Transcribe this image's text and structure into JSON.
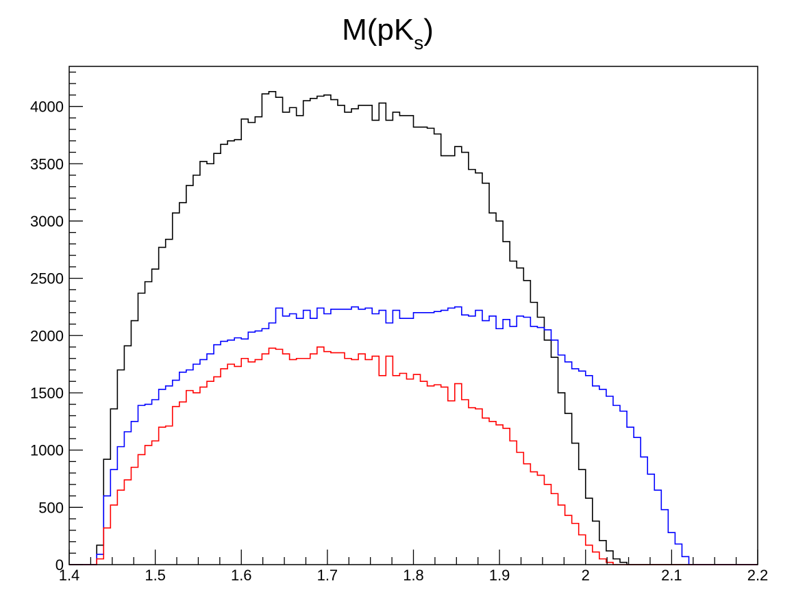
{
  "chart_data": {
    "type": "histogram",
    "title_main": "M(pK",
    "title_subscript": "s",
    "title_close": ")",
    "xlabel": "",
    "ylabel": "",
    "xlim": [
      1.4,
      2.2
    ],
    "ylim": [
      0,
      4350
    ],
    "x_ticks": [
      1.4,
      1.5,
      1.6,
      1.7,
      1.8,
      1.9,
      2.0,
      2.1,
      2.2
    ],
    "x_tick_labels": [
      "1.4",
      "1.5",
      "1.6",
      "1.7",
      "1.8",
      "1.9",
      "2",
      "2.1",
      "2.2"
    ],
    "y_ticks": [
      0,
      500,
      1000,
      1500,
      2000,
      2500,
      3000,
      3500,
      4000
    ],
    "y_tick_labels": [
      "0",
      "500",
      "1000",
      "1500",
      "2000",
      "2500",
      "3000",
      "3500",
      "4000"
    ],
    "grid": false,
    "legend": "none",
    "bins": {
      "start": 1.4,
      "end": 2.2,
      "count": 100
    },
    "series": [
      {
        "color": "#000000",
        "values": [
          0,
          0,
          0,
          0,
          170,
          920,
          1360,
          1700,
          1910,
          2130,
          2370,
          2470,
          2580,
          2770,
          2840,
          3070,
          3160,
          3310,
          3400,
          3520,
          3500,
          3590,
          3670,
          3700,
          3710,
          3890,
          3860,
          3910,
          4110,
          4130,
          4080,
          3950,
          3990,
          3920,
          4050,
          4070,
          4090,
          4100,
          4060,
          4010,
          3950,
          3980,
          4010,
          4010,
          3880,
          4030,
          3880,
          3950,
          3920,
          3920,
          3820,
          3820,
          3810,
          3760,
          3570,
          3570,
          3650,
          3600,
          3450,
          3420,
          3330,
          3070,
          3000,
          2820,
          2650,
          2590,
          2480,
          2290,
          2160,
          1960,
          1810,
          1500,
          1320,
          1060,
          830,
          580,
          380,
          210,
          120,
          50,
          20,
          0,
          0,
          0,
          0,
          0,
          0,
          0,
          0,
          0,
          0,
          0,
          0,
          0,
          0,
          0,
          0,
          0,
          0,
          0
        ]
      },
      {
        "color": "#0000ff",
        "values": [
          0,
          0,
          0,
          0,
          90,
          600,
          830,
          1030,
          1160,
          1250,
          1390,
          1400,
          1440,
          1530,
          1560,
          1610,
          1680,
          1700,
          1750,
          1790,
          1840,
          1920,
          1950,
          1960,
          1980,
          1970,
          2030,
          2040,
          2060,
          2110,
          2240,
          2170,
          2190,
          2150,
          2220,
          2150,
          2240,
          2190,
          2230,
          2230,
          2230,
          2250,
          2230,
          2240,
          2190,
          2220,
          2110,
          2220,
          2150,
          2150,
          2200,
          2200,
          2200,
          2210,
          2220,
          2240,
          2250,
          2180,
          2170,
          2220,
          2130,
          2170,
          2060,
          2140,
          2080,
          2170,
          2160,
          2080,
          2070,
          2050,
          1960,
          1830,
          1770,
          1710,
          1690,
          1650,
          1560,
          1530,
          1470,
          1390,
          1340,
          1200,
          1110,
          940,
          790,
          650,
          480,
          280,
          180,
          70,
          0,
          0,
          0,
          0,
          0,
          0,
          0,
          0,
          0,
          0
        ]
      },
      {
        "color": "#ff0000",
        "values": [
          0,
          0,
          0,
          0,
          50,
          320,
          520,
          650,
          740,
          850,
          960,
          1040,
          1080,
          1200,
          1210,
          1380,
          1420,
          1520,
          1500,
          1550,
          1600,
          1640,
          1710,
          1750,
          1730,
          1800,
          1770,
          1790,
          1840,
          1890,
          1880,
          1840,
          1790,
          1800,
          1800,
          1840,
          1900,
          1860,
          1850,
          1850,
          1800,
          1790,
          1840,
          1790,
          1820,
          1650,
          1820,
          1650,
          1670,
          1620,
          1660,
          1600,
          1560,
          1570,
          1550,
          1430,
          1580,
          1440,
          1370,
          1360,
          1280,
          1250,
          1220,
          1190,
          1080,
          980,
          880,
          810,
          780,
          700,
          620,
          520,
          430,
          360,
          260,
          170,
          110,
          50,
          20,
          0,
          0,
          0,
          0,
          0,
          0,
          0,
          0,
          0,
          0,
          0,
          0,
          0,
          0,
          0,
          0,
          0,
          0,
          0,
          0,
          0
        ]
      }
    ]
  }
}
